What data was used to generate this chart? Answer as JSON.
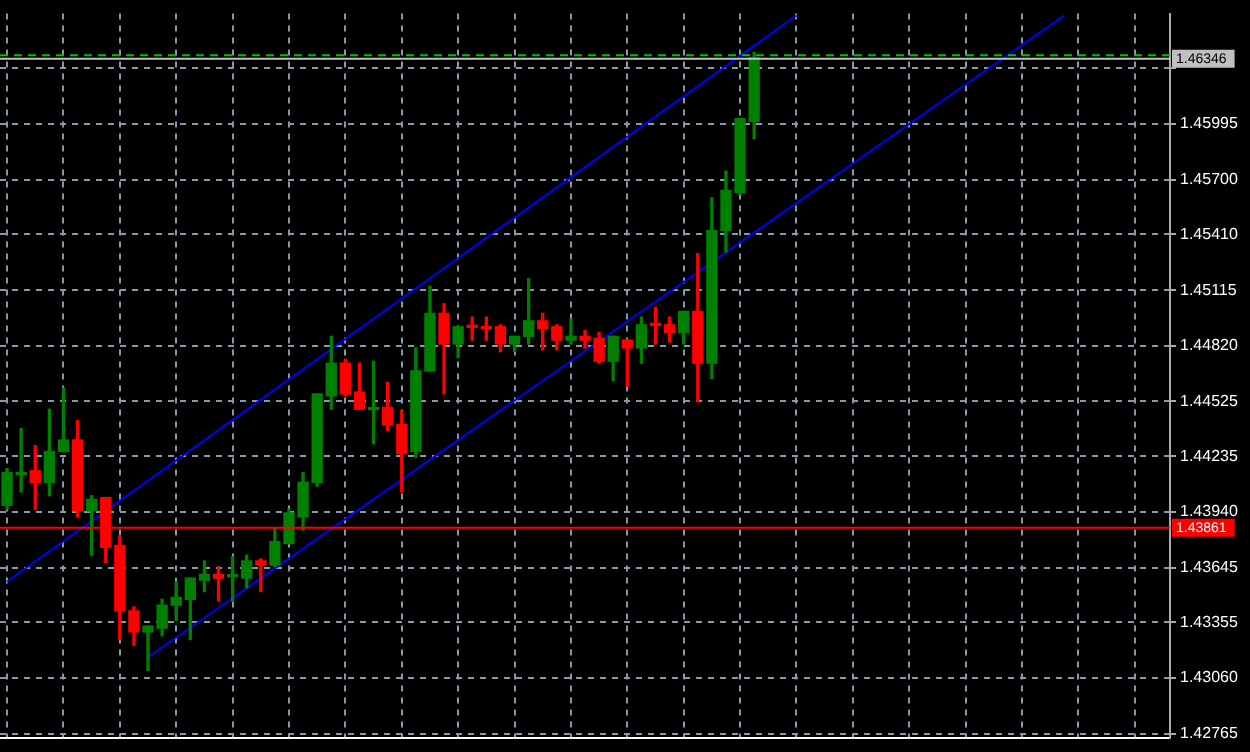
{
  "chart_data": {
    "type": "candlestick",
    "categories": [
      null,
      null,
      null,
      null,
      null,
      null,
      null,
      null,
      null,
      null,
      null,
      null,
      null,
      null,
      null,
      null,
      null,
      null,
      null,
      null,
      null,
      null,
      null,
      null,
      null,
      null,
      null,
      null,
      null,
      null,
      null,
      null,
      null,
      null,
      null,
      null,
      null,
      null,
      null,
      null,
      null,
      null,
      null,
      null,
      null,
      null,
      null,
      null,
      null,
      null,
      null,
      null,
      null,
      null,
      null,
      null,
      null,
      null,
      null,
      null,
      null,
      null,
      null,
      null,
      null,
      null,
      null,
      null,
      null,
      null,
      null,
      null,
      null,
      null,
      null,
      null,
      null,
      null,
      null,
      null,
      null,
      null,
      null
    ],
    "ohlc": [
      [
        1.43975,
        1.44169,
        1.43955,
        1.44148
      ],
      [
        1.44138,
        1.44382,
        1.44046,
        1.44148
      ],
      [
        1.44158,
        1.44291,
        1.43955,
        1.44097
      ],
      [
        1.44097,
        1.44484,
        1.44026,
        1.4426
      ],
      [
        1.4426,
        1.44596,
        1.4426,
        1.44321
      ],
      [
        1.44321,
        1.44423,
        1.43914,
        1.43945
      ],
      [
        1.43945,
        1.44026,
        1.43711,
        1.44006
      ],
      [
        1.44016,
        1.44016,
        1.4367,
        1.43752
      ],
      [
        1.43762,
        1.43813,
        1.43263,
        1.43416
      ],
      [
        1.43416,
        1.43436,
        1.43233,
        1.43304
      ],
      [
        1.43304,
        1.43335,
        1.43101,
        1.43335
      ],
      [
        1.43324,
        1.43477,
        1.43284,
        1.43446
      ],
      [
        1.43446,
        1.43569,
        1.43365,
        1.43487
      ],
      [
        1.43477,
        1.43589,
        1.43263,
        1.43589
      ],
      [
        1.43579,
        1.4368,
        1.43518,
        1.43609
      ],
      [
        1.43609,
        1.4365,
        1.43467,
        1.43589
      ],
      [
        1.43597,
        1.43701,
        1.43467,
        1.43601
      ],
      [
        1.43589,
        1.43711,
        1.43538,
        1.4368
      ],
      [
        1.4368,
        1.43691,
        1.43518,
        1.4366
      ],
      [
        1.4366,
        1.43853,
        1.4365,
        1.43782
      ],
      [
        1.43772,
        1.43955,
        1.43772,
        1.43935
      ],
      [
        1.43914,
        1.44148,
        1.43843,
        1.44097
      ],
      [
        1.44097,
        1.44565,
        1.44077,
        1.44565
      ],
      [
        1.44555,
        1.4487,
        1.44484,
        1.44728
      ],
      [
        1.44728,
        1.44748,
        1.44555,
        1.44565
      ],
      [
        1.44575,
        1.44728,
        1.44484,
        1.44484
      ],
      [
        1.44482,
        1.44738,
        1.44301,
        1.44487
      ],
      [
        1.44494,
        1.44626,
        1.44372,
        1.44402
      ],
      [
        1.44402,
        1.44474,
        1.44046,
        1.4425
      ],
      [
        1.4426,
        1.44809,
        1.4423,
        1.44687
      ],
      [
        1.44687,
        1.45135,
        1.44687,
        1.44992
      ],
      [
        1.44992,
        1.45043,
        1.44565,
        1.4483
      ],
      [
        1.4483,
        1.44921,
        1.44758,
        1.44921
      ],
      [
        1.44921,
        1.44972,
        1.4485,
        1.44918
      ],
      [
        1.44921,
        1.44972,
        1.4485,
        1.44911
      ],
      [
        1.44921,
        1.44931,
        1.44789,
        1.4483
      ],
      [
        1.4483,
        1.4487,
        1.44789,
        1.4487
      ],
      [
        1.4487,
        1.45175,
        1.4483,
        1.44952
      ],
      [
        1.44952,
        1.44992,
        1.44799,
        1.44911
      ],
      [
        1.44921,
        1.44931,
        1.44799,
        1.4485
      ],
      [
        1.4485,
        1.44962,
        1.4483,
        1.4487
      ],
      [
        1.4487,
        1.44901,
        1.44809,
        1.4485
      ],
      [
        1.4486,
        1.44891,
        1.44728,
        1.44738
      ],
      [
        1.44738,
        1.4487,
        1.44636,
        1.4487
      ],
      [
        1.4485,
        1.4485,
        1.44606,
        1.44809
      ],
      [
        1.44809,
        1.44972,
        1.44728,
        1.44931
      ],
      [
        1.44931,
        1.45023,
        1.4483,
        1.44928
      ],
      [
        1.44931,
        1.44972,
        1.4484,
        1.44891
      ],
      [
        1.44891,
        1.45002,
        1.4483,
        1.45002
      ],
      [
        1.45002,
        1.45308,
        1.44524,
        1.44728
      ],
      [
        1.44728,
        1.45603,
        1.44647,
        1.4543
      ],
      [
        1.4543,
        1.45745,
        1.45318,
        1.45643
      ],
      [
        1.45633,
        1.46023,
        1.45623,
        1.46023
      ],
      [
        1.46009,
        1.46375,
        1.45918,
        1.46346
      ],
      null,
      null,
      null,
      null,
      null,
      null,
      null,
      null,
      null,
      null,
      null,
      null,
      null,
      null,
      null,
      null,
      null,
      null,
      null,
      null,
      null,
      null,
      null,
      null,
      null,
      null,
      null,
      null,
      null
    ],
    "colors": [
      "#008000",
      "#008000",
      "#ff0000",
      "#008000",
      "#008000",
      "#ff0000",
      "#008000",
      "#ff0000",
      "#ff0000",
      "#ff0000",
      "#008000",
      "#008000",
      "#008000",
      "#008000",
      "#008000",
      "#ff0000",
      "#008000",
      "#008000",
      "#ff0000",
      "#008000",
      "#008000",
      "#008000",
      "#008000",
      "#008000",
      "#ff0000",
      "#ff0000",
      "#008000",
      "#ff0000",
      "#ff0000",
      "#008000",
      "#008000",
      "#ff0000",
      "#008000",
      "#ff0000",
      "#ff0000",
      "#ff0000",
      "#008000",
      "#008000",
      "#ff0000",
      "#ff0000",
      "#008000",
      "#ff0000",
      "#ff0000",
      "#008000",
      "#ff0000",
      "#008000",
      "#ff0000",
      "#ff0000",
      "#008000",
      "#ff0000",
      "#008000",
      "#008000",
      "#008000",
      "#008000",
      null,
      null,
      null,
      null,
      null,
      null,
      null,
      null,
      null,
      null,
      null,
      null,
      null,
      null,
      null,
      null,
      null,
      null,
      null,
      null,
      null,
      null,
      null,
      null,
      null,
      null,
      null,
      null,
      null
    ],
    "series": [
      {
        "type": "line",
        "color": "#0000ff",
        "values": [
          1.4357,
          null,
          null,
          null,
          null,
          null,
          null,
          null,
          null,
          null,
          null,
          null,
          null,
          null,
          null,
          null,
          null,
          null,
          null,
          null,
          null,
          null,
          null,
          null,
          null,
          null,
          null,
          null,
          null,
          null,
          null,
          null,
          null,
          null,
          null,
          null,
          null,
          null,
          null,
          null,
          null,
          null,
          null,
          null,
          null,
          null,
          null,
          null,
          null,
          null,
          null,
          null,
          null,
          null,
          null,
          null,
          1.4657,
          null,
          null,
          null,
          null,
          null,
          null,
          null,
          null,
          null,
          null,
          null,
          null,
          null,
          null,
          null,
          null,
          null,
          null,
          null,
          null,
          null,
          null,
          null,
          null,
          null,
          null
        ]
      },
      {
        "type": "line",
        "color": "#0000ff",
        "values": [
          null,
          null,
          null,
          null,
          null,
          null,
          null,
          null,
          null,
          null,
          1.4317,
          null,
          null,
          null,
          null,
          null,
          null,
          null,
          null,
          null,
          null,
          null,
          null,
          null,
          null,
          null,
          null,
          null,
          null,
          null,
          null,
          null,
          null,
          null,
          null,
          null,
          null,
          null,
          null,
          null,
          null,
          null,
          null,
          null,
          null,
          null,
          null,
          null,
          null,
          null,
          null,
          null,
          null,
          null,
          null,
          null,
          null,
          null,
          null,
          null,
          null,
          null,
          null,
          null,
          null,
          null,
          null,
          null,
          null,
          null,
          null,
          null,
          null,
          null,
          null,
          1.4657,
          null,
          null,
          null,
          null,
          null,
          null,
          null
        ]
      }
    ],
    "ylim": [
      1.4274,
      1.4658
    ],
    "yticks": [
      1.42765,
      {
        "value": 1.4306,
        "label": "1.43060"
      },
      1.43355,
      1.43645,
      {
        "value": 1.4394,
        "label": "1.43940"
      },
      1.44235,
      1.44525,
      {
        "value": 1.4482,
        "label": "1.44820"
      },
      1.45115,
      {
        "value": 1.4541,
        "label": "1.45410"
      },
      {
        "value": 1.457,
        "label": "1.45700"
      },
      1.45995,
      {
        "value": 1.4629,
        "label": null
      }
    ],
    "ref_lines": [
      {
        "axis": "y",
        "value": 1.43861,
        "label": "1.43861",
        "color": "#ff0000"
      },
      {
        "axis": "y",
        "value": 1.46346,
        "label": "1.46346",
        "color": "#c0c0c0"
      },
      {
        "axis": "y",
        "value": 1.46365,
        "color": "#00c000",
        "line_style": "dashed"
      }
    ],
    "grid": true,
    "tick_labels": "y"
  }
}
